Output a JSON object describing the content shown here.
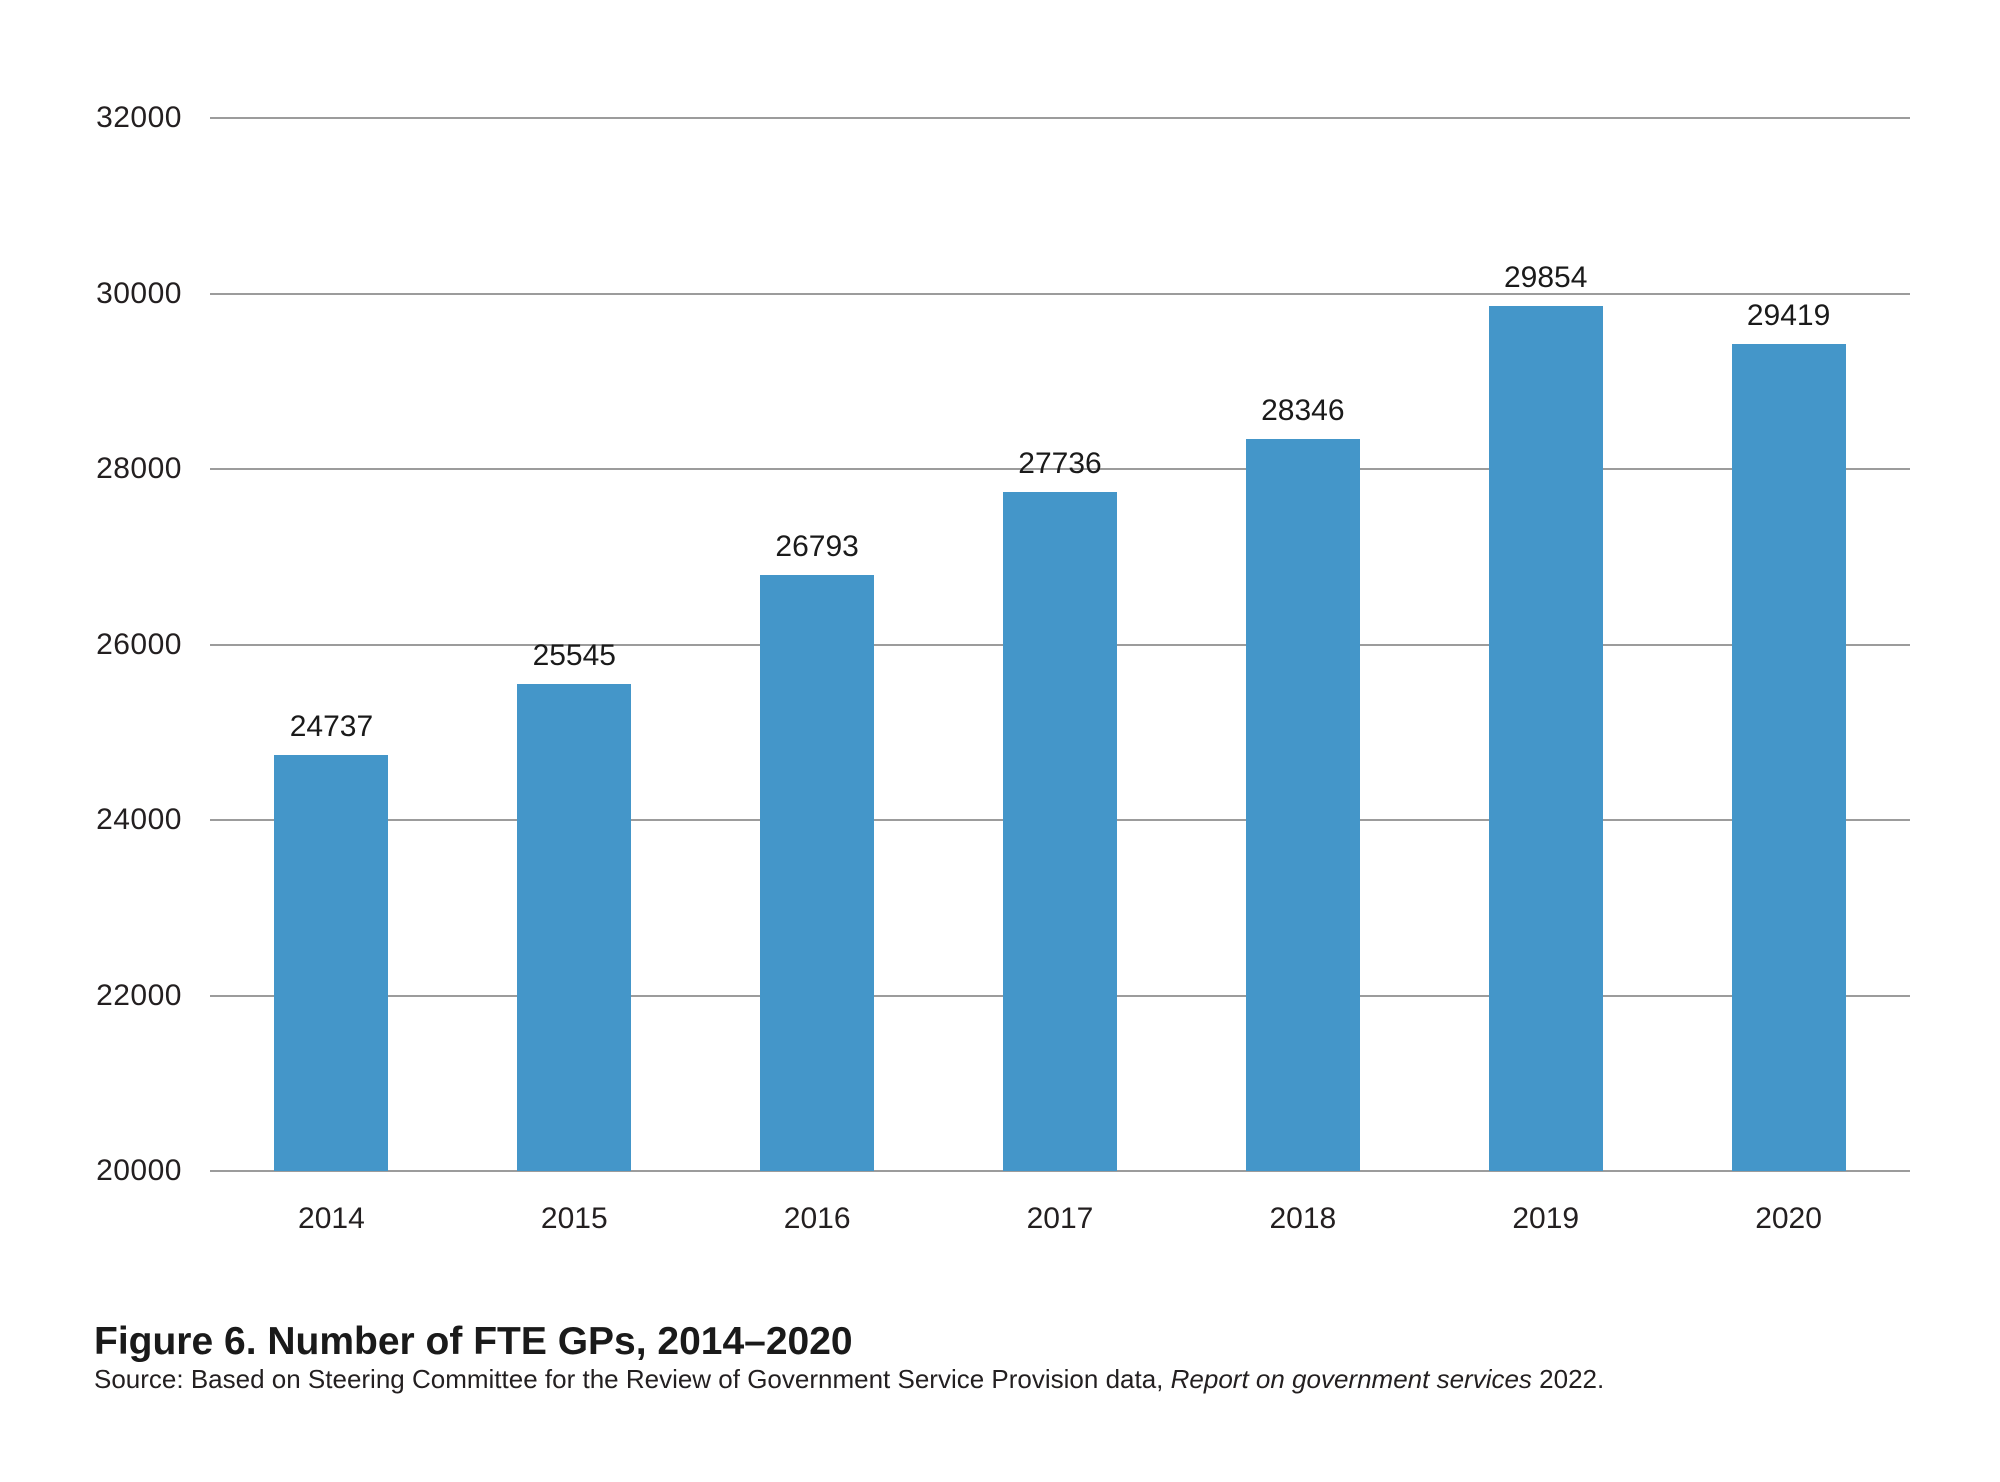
{
  "figure": {
    "title": "Figure 6. Number of FTE GPs, 2014–2020",
    "source": {
      "prefix": "Source: Based on Steering Committee for the Review of Government Service Provision data, ",
      "italic": "Report on government services",
      "suffix": " 2022."
    }
  },
  "chart_data": {
    "type": "bar",
    "categories": [
      "2014",
      "2015",
      "2016",
      "2017",
      "2018",
      "2019",
      "2020"
    ],
    "values": [
      24737,
      25545,
      26793,
      27736,
      28346,
      29854,
      29419
    ],
    "title": "Figure 6. Number of FTE GPs, 2014–2020",
    "xlabel": "",
    "ylabel": "",
    "ylim": [
      20000,
      32000
    ],
    "yticks": [
      20000,
      22000,
      24000,
      26000,
      28000,
      30000,
      32000
    ],
    "grid": "horizontal",
    "legend": "none",
    "data_labels": true,
    "bar_color": "#4496c9",
    "gridline_color": "#9c9c9c",
    "text_color": "#231f20"
  }
}
